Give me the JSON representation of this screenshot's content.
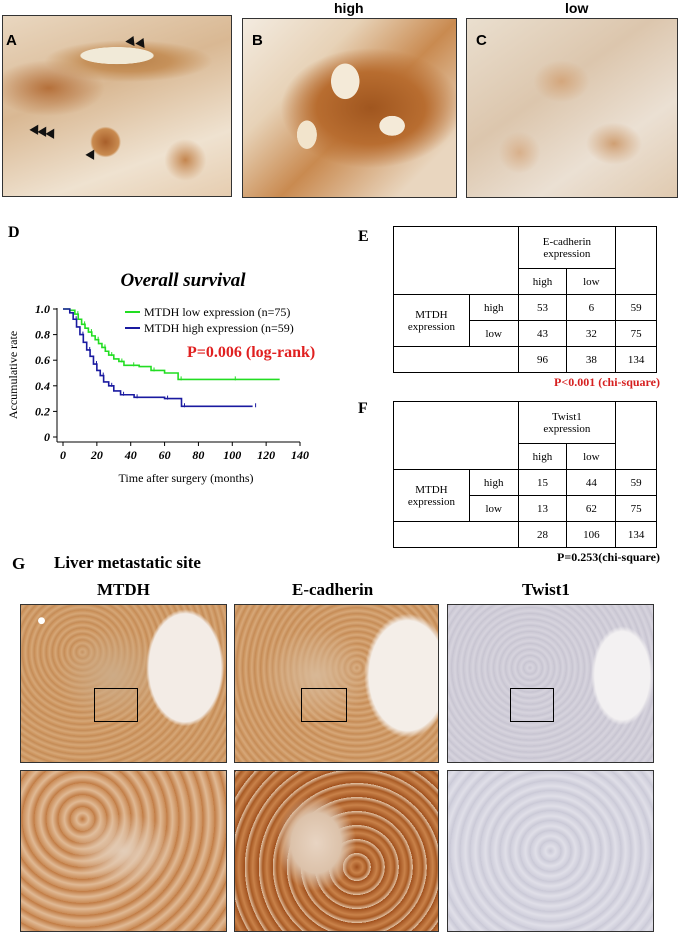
{
  "panels": {
    "a": {
      "letter": "A"
    },
    "b": {
      "letter": "B",
      "title": "high"
    },
    "c": {
      "letter": "C",
      "title": "low"
    },
    "d": {
      "letter": "D"
    },
    "e": {
      "letter": "E"
    },
    "f": {
      "letter": "F"
    },
    "g": {
      "letter": "G",
      "title": "Liver metastatic site"
    }
  },
  "survival": {
    "title": "Overall survival",
    "xlabel": "Time after surgery (months)",
    "ylabel": "Accumulative rate",
    "pvalue": "P=0.006 (log-rank)",
    "pvalue_color": "#e02020",
    "legend_low": "MTDH low expression (n=75)",
    "legend_high": "MTDH high expression (n=59)",
    "low_color": "#22dd22",
    "high_color": "#1a1aa0"
  },
  "table_e": {
    "header": "E-cadherin expression",
    "row_label": "MTDH expression",
    "col_high": "high",
    "col_low": "low",
    "row_high": "high",
    "row_low": "low",
    "r1": [
      "53",
      "6",
      "59"
    ],
    "r2": [
      "43",
      "32",
      "75"
    ],
    "totals": [
      "96",
      "38",
      "134"
    ],
    "pvalue": "P<0.001 (chi-square)",
    "pvalue_color": "#d62020"
  },
  "table_f": {
    "header": "Twist1 expression",
    "row_label": "MTDH expression",
    "col_high": "high",
    "col_low": "low",
    "row_high": "high",
    "row_low": "low",
    "r1": [
      "15",
      "44",
      "59"
    ],
    "r2": [
      "13",
      "62",
      "75"
    ],
    "totals": [
      "28",
      "106",
      "134"
    ],
    "pvalue": "P=0.253(chi-square)"
  },
  "g_columns": [
    "MTDH",
    "E-cadherin",
    "Twist1"
  ],
  "chart_data": {
    "type": "line",
    "title": "Overall survival",
    "xlabel": "Time after surgery (months)",
    "ylabel": "Accumulative rate",
    "xlim": [
      0,
      140
    ],
    "ylim": [
      0,
      1.0
    ],
    "xticks": [
      "0",
      "20",
      "40",
      "60",
      "80",
      "100",
      "120",
      "140"
    ],
    "yticks": [
      "0",
      "0.2",
      "0.4",
      "0.6",
      "0.8",
      "1.0"
    ],
    "legend_position": "top-right",
    "series": [
      {
        "name": "MTDH low expression (n=75)",
        "color": "#22dd22",
        "x": [
          0,
          4,
          7,
          9,
          11,
          13,
          15,
          17,
          19,
          21,
          23,
          25,
          27,
          30,
          33,
          36,
          40,
          45,
          52,
          60,
          68,
          80,
          100,
          128
        ],
        "y": [
          1.0,
          0.99,
          0.96,
          0.92,
          0.88,
          0.85,
          0.82,
          0.79,
          0.76,
          0.73,
          0.7,
          0.67,
          0.64,
          0.61,
          0.59,
          0.56,
          0.56,
          0.55,
          0.52,
          0.5,
          0.45,
          0.45,
          0.45,
          0.45
        ]
      },
      {
        "name": "MTDH high expression (n=59)",
        "color": "#1a1aa0",
        "x": [
          0,
          4,
          6,
          8,
          10,
          12,
          14,
          16,
          18,
          20,
          22,
          24,
          27,
          30,
          34,
          38,
          42,
          50,
          60,
          68,
          70,
          90,
          112
        ],
        "y": [
          1.0,
          0.97,
          0.92,
          0.86,
          0.8,
          0.74,
          0.68,
          0.63,
          0.57,
          0.52,
          0.48,
          0.43,
          0.4,
          0.36,
          0.33,
          0.33,
          0.31,
          0.31,
          0.3,
          0.3,
          0.24,
          0.24,
          0.24
        ]
      }
    ]
  }
}
